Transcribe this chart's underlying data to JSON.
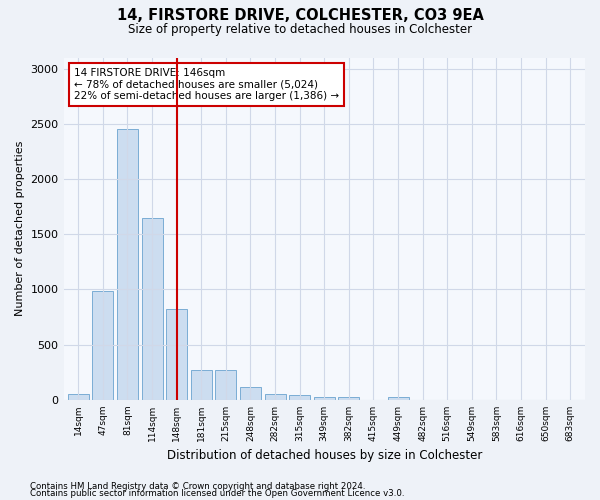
{
  "title": "14, FIRSTORE DRIVE, COLCHESTER, CO3 9EA",
  "subtitle": "Size of property relative to detached houses in Colchester",
  "xlabel": "Distribution of detached houses by size in Colchester",
  "ylabel": "Number of detached properties",
  "categories": [
    "14sqm",
    "47sqm",
    "81sqm",
    "114sqm",
    "148sqm",
    "181sqm",
    "215sqm",
    "248sqm",
    "282sqm",
    "315sqm",
    "349sqm",
    "382sqm",
    "415sqm",
    "449sqm",
    "482sqm",
    "516sqm",
    "549sqm",
    "583sqm",
    "616sqm",
    "650sqm",
    "683sqm"
  ],
  "values": [
    55,
    990,
    2450,
    1650,
    820,
    275,
    275,
    120,
    55,
    45,
    30,
    25,
    0,
    30,
    0,
    0,
    0,
    0,
    0,
    0,
    0
  ],
  "bar_color": "#ccddf0",
  "bar_edge_color": "#7aadd4",
  "vline_index": 4,
  "vline_color": "#cc0000",
  "annotation_text": "14 FIRSTORE DRIVE: 146sqm\n← 78% of detached houses are smaller (5,024)\n22% of semi-detached houses are larger (1,386) →",
  "annotation_box_color": "#ffffff",
  "annotation_box_edge": "#cc0000",
  "ylim": [
    0,
    3100
  ],
  "yticks": [
    0,
    500,
    1000,
    1500,
    2000,
    2500,
    3000
  ],
  "footer_line1": "Contains HM Land Registry data © Crown copyright and database right 2024.",
  "footer_line2": "Contains public sector information licensed under the Open Government Licence v3.0.",
  "bg_color": "#eef2f8",
  "plot_bg_color": "#f5f8fd",
  "grid_color": "#d0d8e8"
}
